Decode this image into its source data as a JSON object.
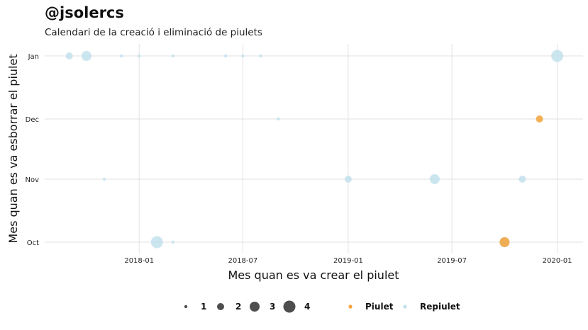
{
  "header": {
    "title": "@jsolercs",
    "subtitle": "Calendari de la creació i eliminació de piulets"
  },
  "chart_data": {
    "type": "scatter",
    "xlabel": "Mes quan es va crear el piulet",
    "ylabel": "Mes quan es va esborrar el piulet",
    "x_ticks": [
      "2018-01",
      "2018-07",
      "2019-01",
      "2019-07",
      "2020-01"
    ],
    "y_categories": [
      "Oct",
      "Nov",
      "Dec",
      "Jan"
    ],
    "xlim": [
      "2017-07-20",
      "2020-02-15"
    ],
    "grid": true,
    "size_legend": {
      "title": "",
      "values": [
        1,
        2,
        3,
        4
      ]
    },
    "color_legend": {
      "title": "",
      "entries": [
        {
          "name": "Piulet",
          "color": "#f5a33a"
        },
        {
          "name": "Repiulet",
          "color": "#bfe0ec"
        }
      ]
    },
    "series": [
      {
        "name": "Repiulet",
        "color": "#bfe0ec",
        "points": [
          {
            "x": "2017-09-01",
            "y": "Jan",
            "size": 2
          },
          {
            "x": "2017-10-01",
            "y": "Jan",
            "size": 3
          },
          {
            "x": "2017-12-01",
            "y": "Jan",
            "size": 1
          },
          {
            "x": "2018-01-01",
            "y": "Jan",
            "size": 1
          },
          {
            "x": "2018-03-01",
            "y": "Jan",
            "size": 1
          },
          {
            "x": "2018-06-01",
            "y": "Jan",
            "size": 1
          },
          {
            "x": "2018-07-01",
            "y": "Jan",
            "size": 1
          },
          {
            "x": "2018-08-01",
            "y": "Jan",
            "size": 1
          },
          {
            "x": "2020-01-01",
            "y": "Jan",
            "size": 4
          },
          {
            "x": "2018-09-01",
            "y": "Dec",
            "size": 1
          },
          {
            "x": "2017-11-01",
            "y": "Nov",
            "size": 1
          },
          {
            "x": "2019-01-01",
            "y": "Nov",
            "size": 2
          },
          {
            "x": "2019-06-01",
            "y": "Nov",
            "size": 3
          },
          {
            "x": "2019-11-01",
            "y": "Nov",
            "size": 2
          },
          {
            "x": "2018-02-01",
            "y": "Oct",
            "size": 4
          },
          {
            "x": "2018-03-01",
            "y": "Oct",
            "size": 1
          },
          {
            "x": "2019-10-01",
            "y": "Oct",
            "size": 3
          }
        ]
      },
      {
        "name": "Piulet",
        "color": "#f5a33a",
        "points": [
          {
            "x": "2019-12-01",
            "y": "Dec",
            "size": 2
          },
          {
            "x": "2019-10-01",
            "y": "Oct",
            "size": 3
          }
        ]
      }
    ]
  }
}
